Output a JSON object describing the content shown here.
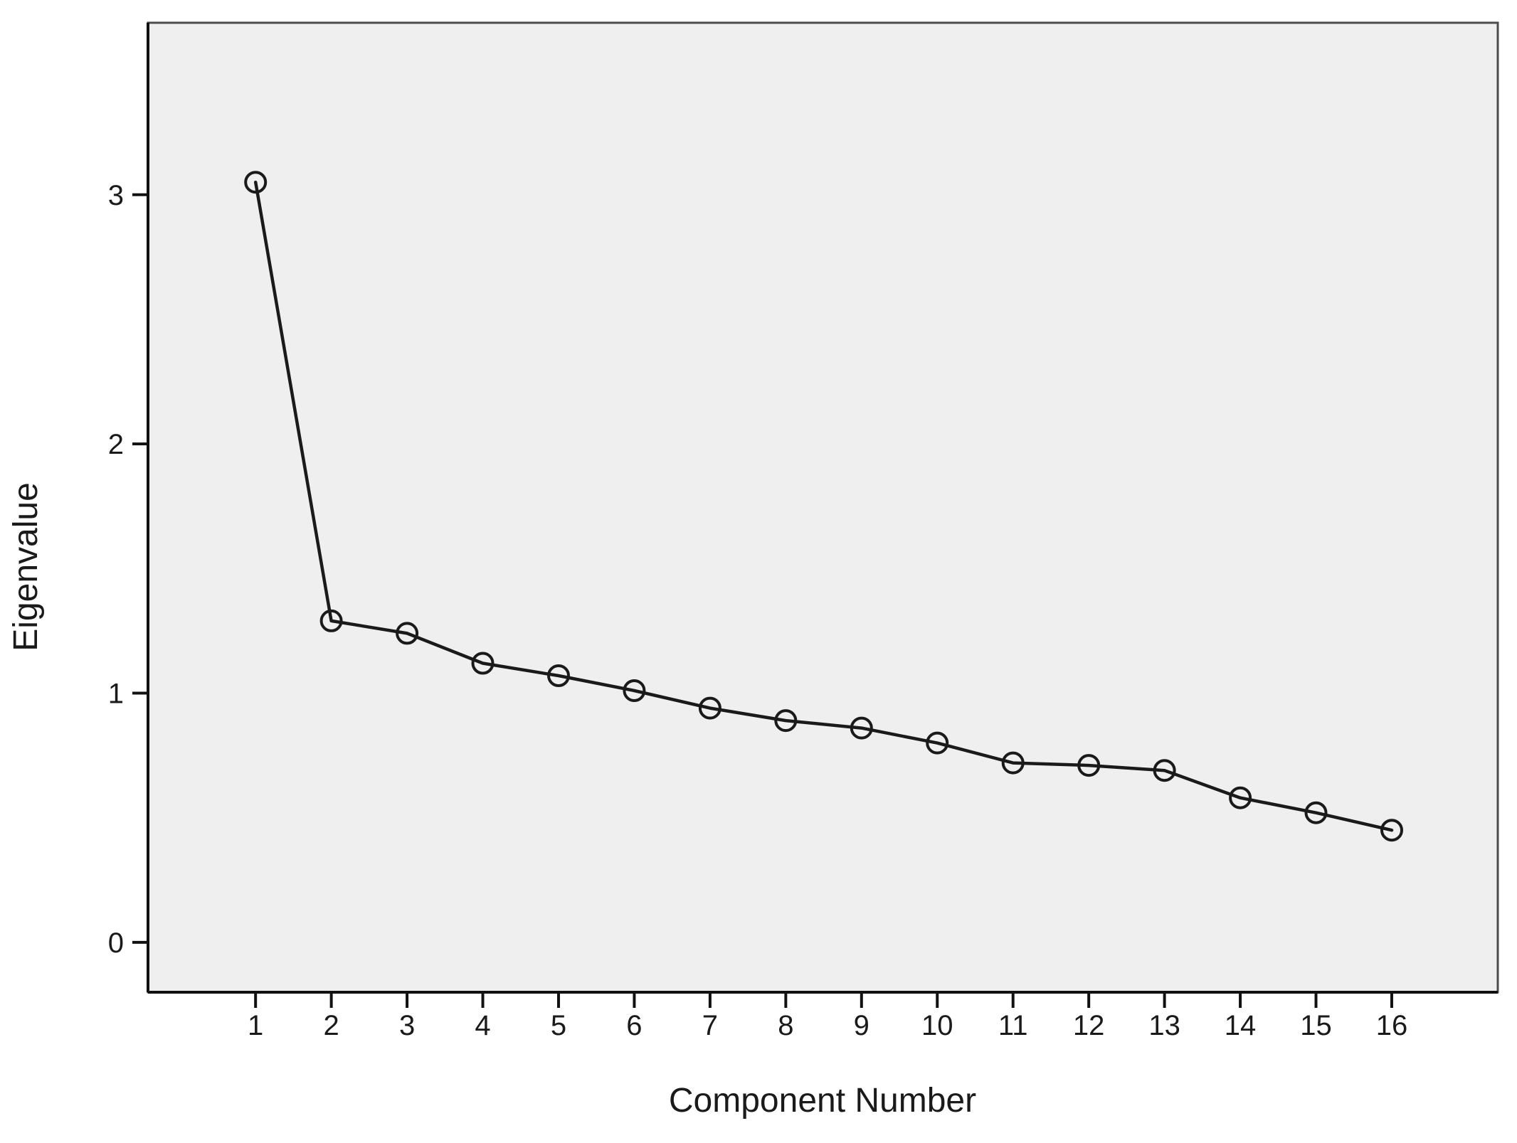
{
  "figure": {
    "x_axis_title": "Component Number",
    "y_axis_title": "Eigenvalue"
  },
  "chart_data": {
    "type": "line",
    "title": "",
    "xlabel": "Component Number",
    "ylabel": "Eigenvalue",
    "x": [
      1,
      2,
      3,
      4,
      5,
      6,
      7,
      8,
      9,
      10,
      11,
      12,
      13,
      14,
      15,
      16
    ],
    "series": [
      {
        "name": "Eigenvalue",
        "values": [
          3.05,
          1.29,
          1.24,
          1.12,
          1.07,
          1.01,
          0.94,
          0.89,
          0.86,
          0.8,
          0.72,
          0.71,
          0.69,
          0.58,
          0.52,
          0.45
        ]
      }
    ],
    "xticks": [
      "1",
      "2",
      "3",
      "4",
      "5",
      "6",
      "7",
      "8",
      "9",
      "10",
      "11",
      "12",
      "13",
      "14",
      "15",
      "16"
    ],
    "yticks": [
      "0",
      "1",
      "2",
      "3"
    ],
    "xlim": [
      -0.42,
      17.4
    ],
    "ylim": [
      -0.2,
      3.69
    ],
    "grid": false,
    "legend": "none",
    "marker": "open-circle",
    "colors": {
      "line": "#1a1a1a",
      "marker": "#1a1a1a",
      "plot_bg": "#efefef",
      "plot_border": "#4c4c4c",
      "axis_line": "#111111",
      "text": "#1a1a1a",
      "outer_bg": "#ffffff"
    }
  }
}
